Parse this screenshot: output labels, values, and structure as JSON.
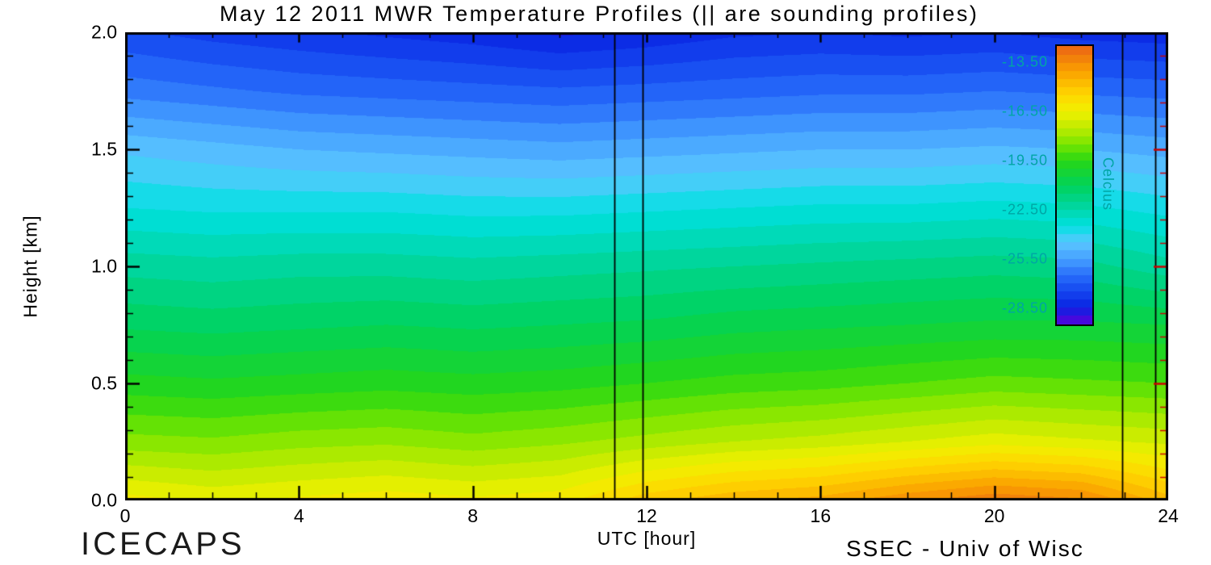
{
  "title": "May 12 2011 MWR Temperature Profiles (|| are sounding profiles)",
  "footer": {
    "left": "ICECAPS",
    "right": "SSEC - Univ of Wisc"
  },
  "axes": {
    "x": {
      "label": "UTC [hour]",
      "min": 0,
      "max": 24,
      "major_ticks": [
        0,
        4,
        8,
        12,
        16,
        20,
        24
      ],
      "major_tick_labels": [
        "0",
        "4",
        "8",
        "12",
        "16",
        "20",
        "24"
      ],
      "minor_step": 1
    },
    "y": {
      "label": "Height [km]",
      "min": 0,
      "max": 2,
      "major_ticks": [
        2.0,
        1.5,
        1.0,
        0.5,
        0.0
      ],
      "major_tick_labels": [
        "2.0",
        "1.5",
        "1.0",
        "0.5",
        "0.0"
      ],
      "minor_step": 0.1
    },
    "frame_color": "#000000",
    "right_tick_color": "#cc0000"
  },
  "colorbar": {
    "title": "Celcius",
    "tick_labels": [
      "-13.50",
      "-16.50",
      "-19.50",
      "-22.50",
      "-25.50",
      "-28.50"
    ],
    "tick_values": [
      -13.5,
      -16.5,
      -19.5,
      -22.5,
      -25.5,
      -28.5
    ],
    "min": -29.5,
    "max": -12.5,
    "label_color": "#00a5a5"
  },
  "chart_data": {
    "type": "heatmap",
    "title": "May 12 2011 MWR Temperature Profiles",
    "xlabel": "UTC [hour]",
    "ylabel": "Height [km]",
    "units": "Celcius",
    "xlim": [
      0,
      24
    ],
    "ylim": [
      0,
      2
    ],
    "value_range": [
      -29.5,
      -12.5
    ],
    "quantize_step": 0.5,
    "x": [
      0,
      2,
      4,
      6,
      8,
      10,
      12,
      14,
      16,
      18,
      20,
      22,
      24
    ],
    "y": [
      0.0,
      0.25,
      0.5,
      0.75,
      1.0,
      1.25,
      1.5,
      1.75,
      2.0
    ],
    "values": [
      [
        -16.3,
        -16.6,
        -16.4,
        -16.2,
        -16.4,
        -16.2,
        -15.2,
        -14.6,
        -14.3,
        -13.6,
        -13.1,
        -13.4,
        -14.8
      ],
      [
        -18.3,
        -18.4,
        -18.2,
        -18.1,
        -18.3,
        -18.1,
        -17.8,
        -17.5,
        -17.3,
        -17.0,
        -16.7,
        -16.9,
        -17.1
      ],
      [
        -19.8,
        -19.9,
        -19.8,
        -19.7,
        -19.8,
        -19.7,
        -19.5,
        -19.3,
        -19.2,
        -19.0,
        -18.8,
        -18.9,
        -19.0
      ],
      [
        -21.1,
        -21.2,
        -21.1,
        -21.0,
        -21.1,
        -21.0,
        -20.9,
        -20.7,
        -20.6,
        -20.5,
        -20.4,
        -20.4,
        -20.5
      ],
      [
        -22.2,
        -22.3,
        -22.2,
        -22.2,
        -22.3,
        -22.2,
        -22.1,
        -22.0,
        -21.9,
        -21.8,
        -21.7,
        -21.8,
        -22.3
      ],
      [
        -23.5,
        -23.6,
        -23.6,
        -23.6,
        -23.7,
        -23.7,
        -23.6,
        -23.5,
        -23.4,
        -23.4,
        -23.3,
        -23.4,
        -23.7
      ],
      [
        -24.6,
        -24.8,
        -25.0,
        -25.1,
        -25.2,
        -25.3,
        -25.2,
        -25.1,
        -25.0,
        -25.0,
        -24.9,
        -25.0,
        -25.2
      ],
      [
        -26.2,
        -26.4,
        -26.6,
        -26.7,
        -26.8,
        -26.9,
        -26.8,
        -26.7,
        -26.6,
        -26.6,
        -26.5,
        -26.6,
        -26.7
      ],
      [
        -27.4,
        -27.7,
        -27.9,
        -28.1,
        -28.3,
        -28.6,
        -28.4,
        -28.1,
        -28.0,
        -28.1,
        -28.0,
        -28.2,
        -28.3
      ]
    ],
    "sounding_times": [
      11.25,
      11.9,
      22.95,
      23.7
    ],
    "colormap_stops": [
      [
        -29.5,
        90,
        0,
        220
      ],
      [
        -28.5,
        10,
        35,
        225
      ],
      [
        -27.5,
        20,
        70,
        240
      ],
      [
        -26.5,
        40,
        110,
        250
      ],
      [
        -25.5,
        70,
        160,
        255
      ],
      [
        -24.5,
        90,
        200,
        255
      ],
      [
        -23.5,
        0,
        225,
        225
      ],
      [
        -22.5,
        0,
        215,
        170
      ],
      [
        -21.0,
        0,
        210,
        90
      ],
      [
        -19.5,
        40,
        215,
        20
      ],
      [
        -18.5,
        120,
        230,
        0
      ],
      [
        -17.5,
        190,
        235,
        0
      ],
      [
        -16.5,
        240,
        240,
        0
      ],
      [
        -15.5,
        255,
        215,
        0
      ],
      [
        -14.0,
        250,
        160,
        0
      ],
      [
        -12.5,
        235,
        100,
        20
      ]
    ]
  }
}
